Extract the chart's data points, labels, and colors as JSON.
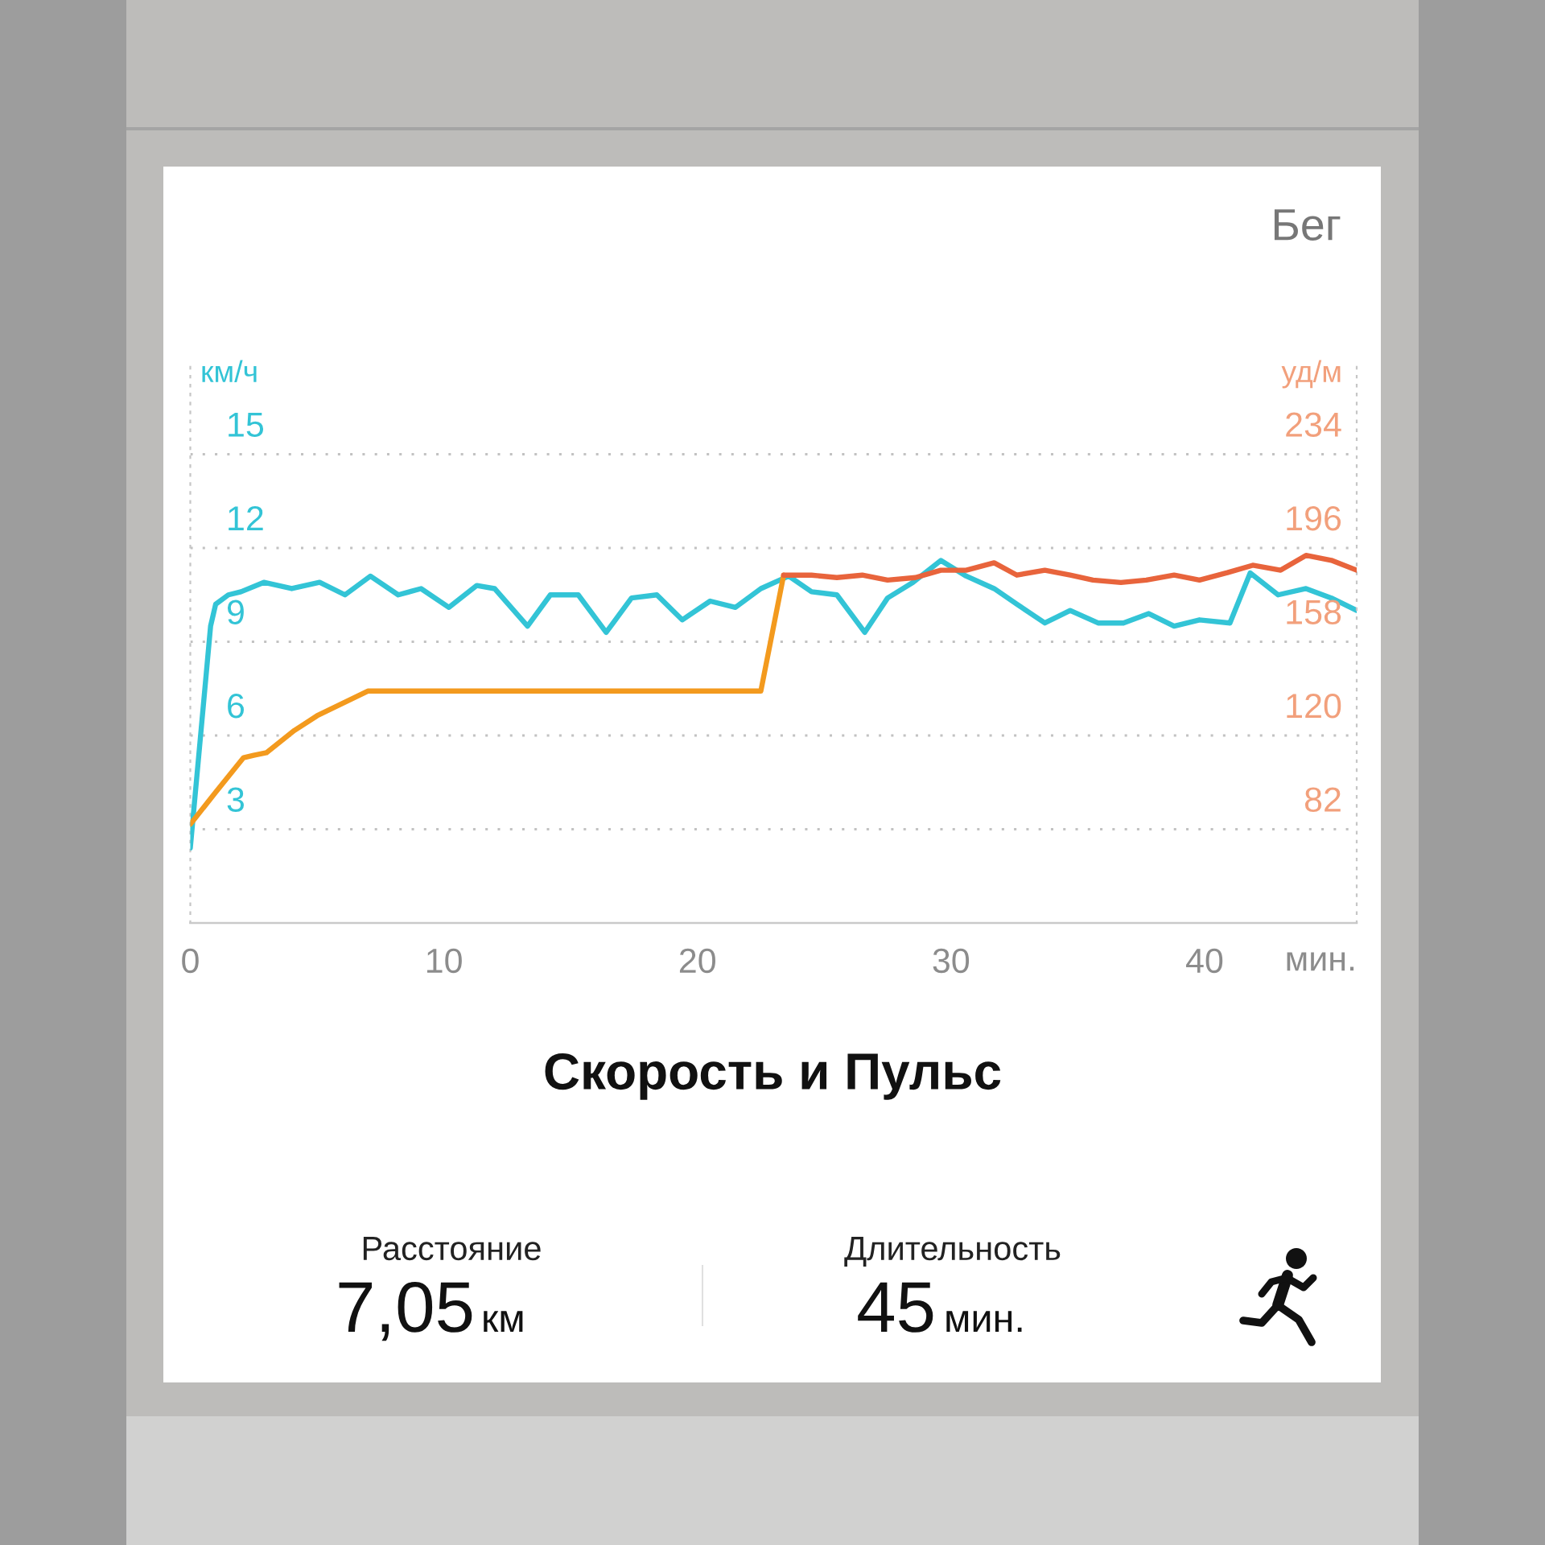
{
  "chart_data": {
    "type": "line",
    "title": "Скорость и Пульс",
    "ylabel": "км/ч",
    "y2label": "уд/м",
    "xlabel": "мин.",
    "annotations": [
      "Бег",
      "Расстояние",
      "7,05",
      "км",
      "Длительность",
      "45",
      "мин."
    ],
    "xlim": [
      0,
      46
    ],
    "xticks": [
      0,
      10,
      20,
      30,
      40
    ],
    "ylim": [
      0,
      18
    ],
    "yticks": [
      3,
      6,
      9,
      12,
      15
    ],
    "y2lim": [
      44,
      272
    ],
    "y2ticks": [
      82,
      120,
      158,
      196,
      234
    ],
    "grid": "y",
    "series": [
      {
        "color": "#33c4d6",
        "x": [
          0,
          0.8,
          1.0,
          1.5,
          2.0,
          2.9,
          4.0,
          5.1,
          6.1,
          7.1,
          8.2,
          9.1,
          10.2,
          11.3,
          12.0,
          13.3,
          14.2,
          15.3,
          16.4,
          17.4,
          18.4,
          19.4,
          20.5,
          21.5,
          22.5,
          23.6,
          24.5,
          25.5,
          26.6,
          27.5,
          28.5,
          29.6,
          30.6,
          31.7,
          32.6,
          33.7,
          34.7,
          35.8,
          36.8,
          37.8,
          38.8,
          39.8,
          41.0,
          41.8,
          42.9,
          44.0,
          45.0,
          46.0
        ],
        "values": [
          2.4,
          9.5,
          10.2,
          10.5,
          10.6,
          10.9,
          10.7,
          10.9,
          10.5,
          11.1,
          10.5,
          10.7,
          10.1,
          10.8,
          10.7,
          9.5,
          10.5,
          10.5,
          9.3,
          10.4,
          10.5,
          9.7,
          10.3,
          10.1,
          10.7,
          11.1,
          10.6,
          10.5,
          9.3,
          10.4,
          10.9,
          11.6,
          11.1,
          10.7,
          10.2,
          9.6,
          10.0,
          9.6,
          9.6,
          9.9,
          9.5,
          9.7,
          9.6,
          11.2,
          10.5,
          10.7,
          10.4,
          10.0
        ]
      },
      {
        "color": "#f39a1e",
        "axis": "y2",
        "x": [
          0,
          1.0,
          2.1,
          2.5,
          3.0,
          4.1,
          5.0,
          6.0,
          7.0,
          22.5,
          23.4
        ],
        "values": [
          84,
          97,
          111,
          112,
          113,
          122,
          128,
          133,
          138,
          138,
          185
        ]
      },
      {
        "color": "#e8643c",
        "axis": "y2",
        "x": [
          23.4,
          24.5,
          25.5,
          26.5,
          27.5,
          28.6,
          29.6,
          30.6,
          31.7,
          32.6,
          33.7,
          34.7,
          35.6,
          36.7,
          37.7,
          38.8,
          39.8,
          40.9,
          41.9,
          43.0,
          44.0,
          45.0,
          46.0
        ],
        "values": [
          185,
          185,
          184,
          185,
          183,
          184,
          187,
          187,
          190,
          185,
          187,
          185,
          183,
          182,
          183,
          185,
          183,
          186,
          189,
          187,
          193,
          191,
          187
        ]
      }
    ]
  }
}
